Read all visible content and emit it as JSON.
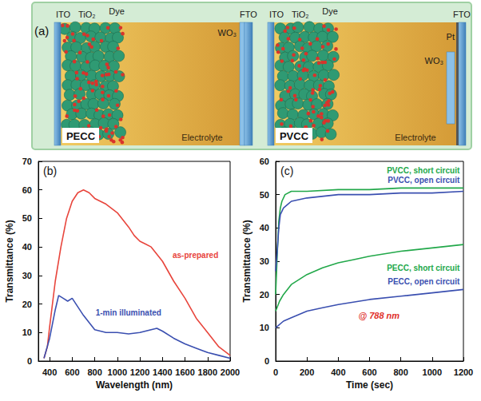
{
  "diagram": {
    "panel": "(a)",
    "devices": [
      {
        "name": "PECC",
        "ito": "ITO",
        "tio2": "TiO₂",
        "dye": "Dye",
        "electrolyte": "Electrolyte",
        "wo3": "WO₃",
        "fto": "FTO"
      },
      {
        "name": "PVCC",
        "ito": "ITO",
        "tio2": "TiO₂",
        "dye": "Dye",
        "electrolyte": "Electrolyte",
        "wo3": "WO₃",
        "pt": "Pt",
        "fto": "FTO"
      }
    ]
  },
  "chart_data": [
    {
      "panel": "(b)",
      "type": "line",
      "x_label": "Wavelength (nm)",
      "y_label": "Transmittance (%)",
      "xlim": [
        300,
        2000
      ],
      "xticks": [
        400,
        600,
        800,
        1000,
        1200,
        1400,
        1600,
        1800,
        2000
      ],
      "ylim": [
        0,
        70
      ],
      "yticks": [
        0,
        10,
        20,
        30,
        40,
        50,
        60,
        70
      ],
      "grid": false,
      "series": [
        {
          "name": "as-prepared",
          "color": "#e8453c",
          "x": [
            350,
            380,
            400,
            450,
            500,
            550,
            600,
            650,
            700,
            750,
            800,
            900,
            1000,
            1100,
            1150,
            1200,
            1250,
            1300,
            1400,
            1500,
            1600,
            1700,
            1800,
            1900,
            2000
          ],
          "values": [
            1,
            5,
            12,
            28,
            40,
            50,
            56,
            59,
            60,
            59,
            57,
            55,
            52,
            47,
            44,
            42,
            41,
            40,
            35,
            28,
            22,
            15,
            10,
            5,
            2
          ]
        },
        {
          "name": "1-min illuminated",
          "color": "#3a4fb0",
          "x": [
            350,
            400,
            450,
            480,
            520,
            560,
            600,
            650,
            700,
            800,
            900,
            1000,
            1100,
            1200,
            1300,
            1350,
            1400,
            1500,
            1600,
            1700,
            1800,
            1900,
            2000
          ],
          "values": [
            1,
            8,
            18,
            23,
            22,
            21,
            22,
            19,
            16,
            11,
            10,
            10,
            9.5,
            10,
            11,
            11.5,
            10.5,
            8,
            6,
            4.5,
            3,
            2,
            1
          ]
        }
      ]
    },
    {
      "panel": "(c)",
      "type": "line",
      "x_label": "Time (sec)",
      "y_label": "Transmittance (%)",
      "xlim": [
        0,
        1200
      ],
      "xticks": [
        0,
        200,
        400,
        600,
        800,
        1000,
        1200
      ],
      "ylim": [
        0,
        60
      ],
      "yticks": [
        0,
        10,
        20,
        30,
        40,
        50,
        60
      ],
      "grid": false,
      "annotations": [
        {
          "text": "@ 788 nm",
          "color": "#e0302b"
        }
      ],
      "series": [
        {
          "name": "PVCC, short circuit",
          "color": "#22a84a",
          "x": [
            0,
            10,
            20,
            30,
            40,
            60,
            100,
            200,
            400,
            600,
            800,
            1000,
            1200
          ],
          "values": [
            20,
            32,
            42,
            46,
            48,
            50,
            51,
            51,
            51.5,
            51.5,
            52,
            52,
            52
          ]
        },
        {
          "name": "PVCC, open circuit",
          "color": "#3a4fb0",
          "x": [
            0,
            10,
            20,
            30,
            50,
            100,
            200,
            400,
            600,
            800,
            1000,
            1200
          ],
          "values": [
            27,
            33,
            40,
            44,
            46,
            48,
            49,
            50,
            50,
            50.5,
            50.5,
            51
          ]
        },
        {
          "name": "PECC, short circuit",
          "color": "#22a84a",
          "x": [
            0,
            25,
            50,
            100,
            200,
            300,
            400,
            500,
            600,
            800,
            1000,
            1200
          ],
          "values": [
            15,
            18,
            20,
            23,
            26,
            28,
            29.5,
            30.5,
            31.5,
            33,
            34,
            35
          ]
        },
        {
          "name": "PECC, open circuit",
          "color": "#3a4fb0",
          "x": [
            0,
            50,
            100,
            200,
            300,
            400,
            600,
            800,
            1000,
            1200
          ],
          "values": [
            10,
            12,
            13,
            15,
            16,
            17,
            18.5,
            19.5,
            20.5,
            21.5
          ]
        }
      ]
    }
  ]
}
